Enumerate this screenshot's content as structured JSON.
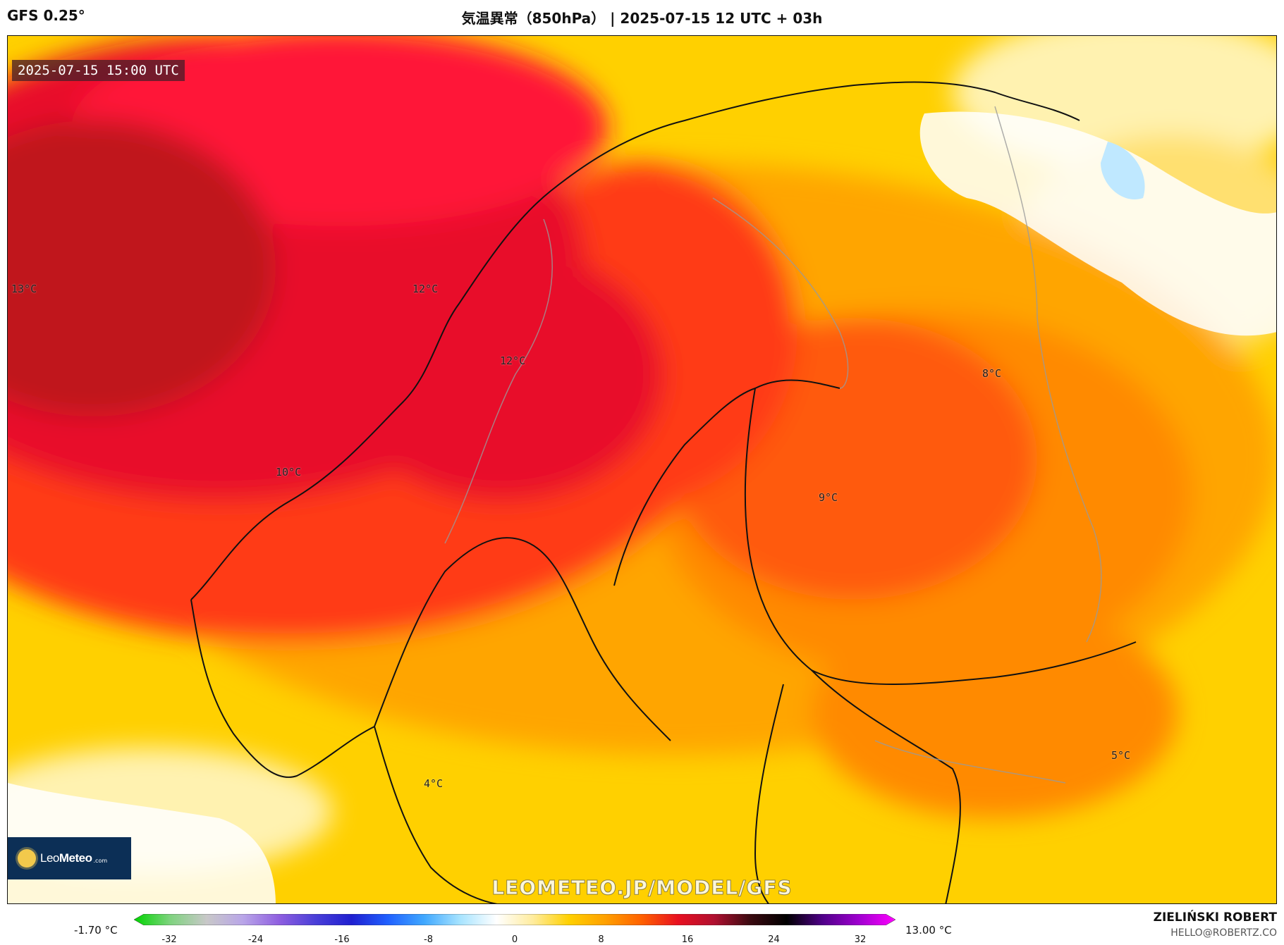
{
  "header": {
    "model": "GFS 0.25°",
    "title": "気温異常（850hPa） | 2025-07-15 12 UTC + 03h"
  },
  "map": {
    "valid_time": "2025-07-15 15:00 UTC",
    "labels": [
      {
        "name": "label-13c-west",
        "text": "13°C"
      },
      {
        "name": "label-12c-coast",
        "text": "12°C"
      },
      {
        "name": "label-12c-norway",
        "text": "12°C"
      },
      {
        "name": "label-10c",
        "text": "10°C"
      },
      {
        "name": "label-8c",
        "text": "8°C"
      },
      {
        "name": "label-9c",
        "text": "9°C"
      },
      {
        "name": "label-5c",
        "text": "5°C"
      },
      {
        "name": "label-4c",
        "text": "4°C"
      }
    ],
    "logo": {
      "icon": "sun-icon",
      "brand_light": "Leo",
      "brand_bold": "Meteo",
      "domain": ".com"
    },
    "watermark": "LEOMETEO.JP/MODEL/GFS"
  },
  "colorbar": {
    "min_label": "-1.70 °C",
    "max_label": "13.00 °C",
    "ticks": [
      "-32",
      "-24",
      "-16",
      "-8",
      "0",
      "8",
      "16",
      "24",
      "32"
    ],
    "stops": [
      "#00d400",
      "#7fd37f",
      "#c8c8c8",
      "#b9a6e8",
      "#8f5fe0",
      "#4a3fd8",
      "#1f1fd0",
      "#2060ff",
      "#40a8ff",
      "#a8e4ff",
      "#ffffff",
      "#ffec9e",
      "#ffd000",
      "#ffa000",
      "#ff6000",
      "#e81020",
      "#b01030",
      "#3a0a10",
      "#000000",
      "#50008a",
      "#a000d0",
      "#ff00ff"
    ]
  },
  "footer": {
    "author": "ZIELIŃSKI ROBERT",
    "email": "HELLO@ROBERTZ.CO"
  },
  "colors": {
    "anomaly_max": "#c0141e",
    "anomaly_high": "#e8102c",
    "anomaly_mid": "#ff5a0a",
    "anomaly_low": "#ffa500",
    "anomaly_min": "#ffd000"
  }
}
